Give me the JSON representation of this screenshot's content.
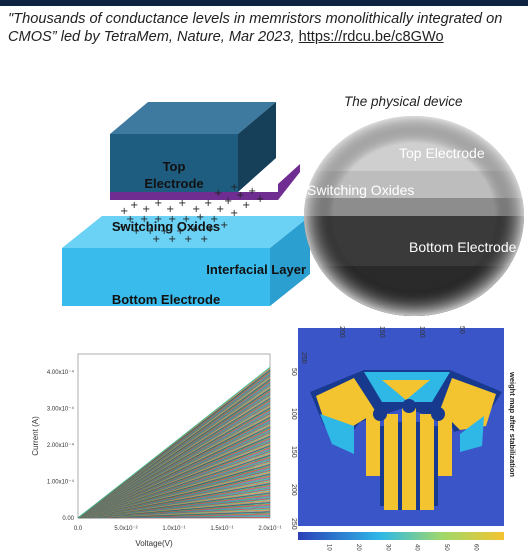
{
  "citation": {
    "text": "\"Thousands of conductance levels in memristors monolithically integrated on CMOS” led by TetraMem, Nature, Mar 2023, ",
    "link": "https://rdcu.be/c8GWo"
  },
  "device_diagram": {
    "top_electrode_line1": "Top",
    "top_electrode_line2": "Electrode",
    "switching_oxides": "Switching Oxides",
    "interfacial_layer": "Interfacial Layer",
    "bottom_electrode": "Bottom Electrode",
    "colors": {
      "top": "#1f5d80",
      "switch": "#6f2c91",
      "interfacial": "#3fc3ef",
      "bottom": "#39bcec"
    }
  },
  "photo": {
    "caption": "The physical device",
    "top_electrode": "Top Electrode",
    "switching_oxides": "Switching Oxides",
    "bottom_electrode": "Bottom Electrode"
  },
  "chart_data": [
    {
      "type": "line",
      "xlabel": "Voltage(V)",
      "ylabel": "Current (A)",
      "x_ticks": [
        "0.0",
        "5.0x10⁻²",
        "1.0x10⁻¹",
        "1.5x10⁻¹",
        "2.0x10⁻¹"
      ],
      "y_ticks": [
        "0.00",
        "1.00x10⁻⁴",
        "2.00x10⁻⁴",
        "3.00x10⁻⁴",
        "4.00x10⁻⁴"
      ],
      "xlim": [
        0,
        0.2
      ],
      "ylim": [
        0,
        0.00045
      ],
      "series_description": "thousands of linear I-V curves",
      "max_current_at_0_2V": 0.000415
    },
    {
      "type": "heatmap",
      "title": "weight map after stabilization",
      "axis_ticks": [
        "50",
        "100",
        "150",
        "200",
        "250"
      ],
      "colorbar_ticks": [
        "10",
        "20",
        "30",
        "40",
        "50",
        "60"
      ],
      "colors": {
        "background": "#3a55c8",
        "cyan": "#2fb8e6",
        "yellow": "#f4c430",
        "dark": "#173a8f"
      }
    }
  ]
}
